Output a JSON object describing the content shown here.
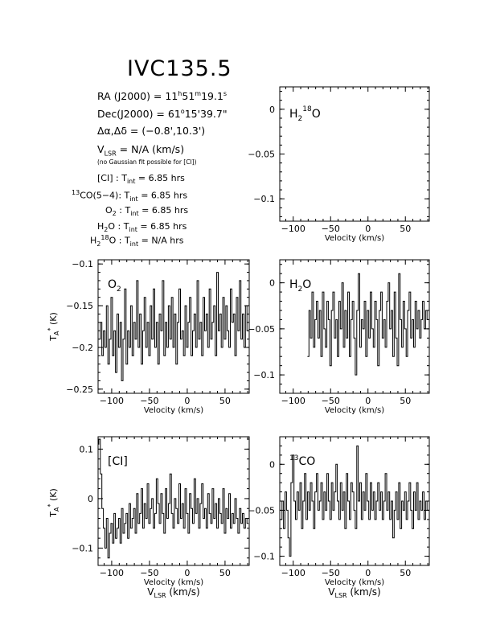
{
  "title": "IVC135.5",
  "info": {
    "ra_label": "RA (J2000) =",
    "ra_h": "11",
    "ra_h_unit": "h",
    "ra_m": "51",
    "ra_m_unit": "m",
    "ra_s": "19.1",
    "ra_s_unit": "s",
    "dec_label": "Dec(J2000) =",
    "dec_deg": "61",
    "dec_deg_unit": "o",
    "dec_rest": "15'39.7\"",
    "offset": "Δα,Δδ = (−0.8',10.3')",
    "vlsr_pre": "V",
    "vlsr_sub": "LSR",
    "vlsr_post": "= N/A  (km/s)",
    "note": "(no Gaussian fit possible for [CI])",
    "tint_rows": [
      {
        "species_pre": "",
        "species_sup": "",
        "species": "[CI] :",
        "species_sub": "",
        "species_post": "",
        "value": "6.85 hrs"
      },
      {
        "species_pre": "",
        "species_sup": "13",
        "species": "CO(5−4):",
        "species_sub": "",
        "species_post": "",
        "value": "6.85 hrs"
      },
      {
        "species_pre": "",
        "species_sup": "",
        "species": "O",
        "species_sub": "2",
        "species_post": " :",
        "value": "6.85 hrs"
      },
      {
        "species_pre": "",
        "species_sup": "",
        "species": "H",
        "species_sub": "2",
        "species_post": "O :",
        "value": "6.85 hrs"
      },
      {
        "species_pre": "H",
        "species_sup": "",
        "species": "",
        "species_sub": "2",
        "species_post": "O :",
        "value": "N/A hrs",
        "iso": "18"
      }
    ],
    "tint_label": "T",
    "tint_sub": "int",
    "tint_eq": "="
  },
  "chart_data": [
    {
      "type": "line",
      "id": "h2_18o",
      "label_main": "H",
      "label_sub": "2",
      "label_sup": "18",
      "label_post": "O",
      "xlabel": "Velocity (km/s)",
      "ylabel": "",
      "xlim": [
        -118,
        82
      ],
      "ylim": [
        -0.125,
        0.025
      ],
      "xticks": [
        -100,
        -50,
        0,
        50
      ],
      "yticks": [
        0,
        -0.05,
        -0.1
      ],
      "x": [],
      "y": []
    },
    {
      "type": "line",
      "id": "o2",
      "label_main": "O",
      "label_sub": "2",
      "xlabel": "Velocity (km/s)",
      "ylabel": "T_A* (K)",
      "xlim": [
        -118,
        82
      ],
      "ylim": [
        -0.255,
        -0.095
      ],
      "xticks": [
        -100,
        -50,
        0,
        50
      ],
      "yticks": [
        -0.1,
        -0.15,
        -0.2,
        -0.25
      ],
      "x": [
        -116,
        -114,
        -112,
        -110,
        -108,
        -106,
        -104,
        -102,
        -100,
        -98,
        -96,
        -94,
        -92,
        -90,
        -88,
        -86,
        -84,
        -82,
        -80,
        -78,
        -76,
        -74,
        -72,
        -70,
        -68,
        -66,
        -64,
        -62,
        -60,
        -58,
        -56,
        -54,
        -52,
        -50,
        -48,
        -46,
        -44,
        -42,
        -40,
        -38,
        -36,
        -34,
        -32,
        -30,
        -28,
        -26,
        -24,
        -22,
        -20,
        -18,
        -16,
        -14,
        -12,
        -10,
        -8,
        -6,
        -4,
        -2,
        0,
        2,
        4,
        6,
        8,
        10,
        12,
        14,
        16,
        18,
        20,
        22,
        24,
        26,
        28,
        30,
        32,
        34,
        36,
        38,
        40,
        42,
        44,
        46,
        48,
        50,
        52,
        54,
        56,
        58,
        60,
        62,
        64,
        66,
        68,
        70,
        72,
        74,
        76,
        78,
        80
      ],
      "y": [
        -0.19,
        -0.17,
        -0.21,
        -0.18,
        -0.2,
        -0.15,
        -0.22,
        -0.19,
        -0.14,
        -0.21,
        -0.18,
        -0.23,
        -0.16,
        -0.2,
        -0.17,
        -0.24,
        -0.19,
        -0.13,
        -0.22,
        -0.18,
        -0.2,
        -0.15,
        -0.21,
        -0.17,
        -0.19,
        -0.12,
        -0.2,
        -0.16,
        -0.22,
        -0.18,
        -0.14,
        -0.2,
        -0.17,
        -0.21,
        -0.15,
        -0.19,
        -0.13,
        -0.2,
        -0.17,
        -0.22,
        -0.16,
        -0.18,
        -0.12,
        -0.21,
        -0.17,
        -0.2,
        -0.15,
        -0.19,
        -0.14,
        -0.2,
        -0.16,
        -0.22,
        -0.17,
        -0.13,
        -0.19,
        -0.18,
        -0.21,
        -0.15,
        -0.2,
        -0.17,
        -0.14,
        -0.21,
        -0.18,
        -0.16,
        -0.2,
        -0.12,
        -0.19,
        -0.17,
        -0.21,
        -0.14,
        -0.18,
        -0.16,
        -0.2,
        -0.13,
        -0.19,
        -0.17,
        -0.15,
        -0.21,
        -0.11,
        -0.18,
        -0.16,
        -0.2,
        -0.14,
        -0.19,
        -0.15,
        -0.18,
        -0.2,
        -0.13,
        -0.17,
        -0.16,
        -0.21,
        -0.14,
        -0.18,
        -0.12,
        -0.19,
        -0.16,
        -0.2,
        -0.15,
        -0.18
      ]
    },
    {
      "type": "line",
      "id": "h2o",
      "label_main": "H",
      "label_sub": "2",
      "label_post": "O",
      "xlabel": "Velocity (km/s)",
      "ylabel": "",
      "xlim": [
        -118,
        82
      ],
      "ylim": [
        -0.12,
        0.025
      ],
      "xticks": [
        -100,
        -50,
        0,
        50
      ],
      "yticks": [
        0,
        -0.05,
        -0.1
      ],
      "x": [
        -80,
        -78,
        -76,
        -74,
        -72,
        -70,
        -68,
        -66,
        -64,
        -62,
        -60,
        -58,
        -56,
        -54,
        -52,
        -50,
        -48,
        -46,
        -44,
        -42,
        -40,
        -38,
        -36,
        -34,
        -32,
        -30,
        -28,
        -26,
        -24,
        -22,
        -20,
        -18,
        -16,
        -14,
        -12,
        -10,
        -8,
        -6,
        -4,
        -2,
        0,
        2,
        4,
        6,
        8,
        10,
        12,
        14,
        16,
        18,
        20,
        22,
        24,
        26,
        28,
        30,
        32,
        34,
        36,
        38,
        40,
        42,
        44,
        46,
        48,
        50,
        52,
        54,
        56,
        58,
        60,
        62,
        64,
        66,
        68,
        70,
        72,
        74,
        76,
        78,
        80
      ],
      "y": [
        -0.08,
        -0.03,
        -0.06,
        -0.01,
        -0.07,
        -0.04,
        -0.02,
        -0.06,
        -0.03,
        -0.08,
        -0.01,
        -0.05,
        -0.07,
        -0.02,
        -0.04,
        -0.09,
        -0.03,
        -0.01,
        -0.06,
        -0.04,
        -0.08,
        -0.02,
        -0.05,
        0.0,
        -0.07,
        -0.03,
        -0.06,
        -0.01,
        -0.08,
        -0.04,
        -0.02,
        -0.06,
        -0.1,
        -0.03,
        0.01,
        -0.07,
        -0.04,
        -0.05,
        -0.02,
        -0.08,
        -0.03,
        -0.06,
        -0.01,
        -0.05,
        -0.07,
        -0.02,
        -0.04,
        -0.09,
        -0.03,
        -0.01,
        -0.06,
        -0.04,
        -0.07,
        -0.02,
        0.0,
        -0.05,
        -0.03,
        -0.08,
        -0.01,
        -0.06,
        -0.09,
        0.01,
        -0.04,
        -0.07,
        -0.02,
        -0.05,
        -0.08,
        -0.03,
        -0.01,
        -0.06,
        -0.04,
        -0.07,
        -0.02,
        -0.05,
        -0.03,
        -0.06,
        -0.04,
        -0.02,
        -0.05,
        -0.03,
        -0.04
      ]
    },
    {
      "type": "line",
      "id": "ci",
      "label_main": "[CI]",
      "xlabel": "Velocity (km/s)",
      "xlabel2_pre": "V",
      "xlabel2_sub": "LSR",
      "xlabel2_post": " (km/s)",
      "ylabel": "T_A* (K)",
      "xlim": [
        -118,
        82
      ],
      "ylim": [
        -0.135,
        0.125
      ],
      "xticks": [
        -100,
        -50,
        0,
        50
      ],
      "yticks": [
        0.1,
        0,
        -0.1
      ],
      "x": [
        -118,
        -116,
        -114,
        -112,
        -110,
        -108,
        -106,
        -104,
        -102,
        -100,
        -98,
        -96,
        -94,
        -92,
        -90,
        -88,
        -86,
        -84,
        -82,
        -80,
        -78,
        -76,
        -74,
        -72,
        -70,
        -68,
        -66,
        -64,
        -62,
        -60,
        -58,
        -56,
        -54,
        -52,
        -50,
        -48,
        -46,
        -44,
        -42,
        -40,
        -38,
        -36,
        -34,
        -32,
        -30,
        -28,
        -26,
        -24,
        -22,
        -20,
        -18,
        -16,
        -14,
        -12,
        -10,
        -8,
        -6,
        -4,
        -2,
        0,
        2,
        4,
        6,
        8,
        10,
        12,
        14,
        16,
        18,
        20,
        22,
        24,
        26,
        28,
        30,
        32,
        34,
        36,
        38,
        40,
        42,
        44,
        46,
        48,
        50,
        52,
        54,
        56,
        58,
        60,
        62,
        64,
        66,
        68,
        70,
        72,
        74,
        76,
        78,
        80
      ],
      "y": [
        0.11,
        0.12,
        0.05,
        -0.02,
        -0.06,
        -0.1,
        -0.04,
        -0.12,
        -0.07,
        -0.05,
        -0.09,
        -0.03,
        -0.08,
        -0.06,
        -0.04,
        -0.09,
        -0.02,
        -0.07,
        -0.05,
        -0.03,
        -0.08,
        -0.01,
        -0.06,
        -0.04,
        -0.02,
        -0.07,
        0.01,
        -0.05,
        -0.03,
        0.02,
        -0.06,
        -0.01,
        -0.04,
        0.03,
        -0.05,
        -0.02,
        0.0,
        -0.06,
        -0.03,
        0.04,
        -0.01,
        -0.05,
        0.01,
        -0.03,
        -0.07,
        0.02,
        -0.04,
        -0.01,
        0.05,
        -0.03,
        -0.06,
        0.0,
        -0.02,
        -0.05,
        0.03,
        -0.04,
        -0.01,
        -0.06,
        0.02,
        -0.03,
        -0.07,
        0.01,
        -0.02,
        -0.05,
        0.04,
        -0.03,
        0.0,
        -0.06,
        -0.01,
        0.03,
        -0.04,
        -0.02,
        -0.06,
        0.01,
        -0.03,
        -0.05,
        0.02,
        -0.04,
        -0.01,
        -0.06,
        0.0,
        -0.03,
        -0.05,
        0.02,
        -0.07,
        -0.02,
        -0.04,
        0.01,
        -0.06,
        -0.03,
        -0.05,
        0.0,
        -0.04,
        -0.07,
        -0.02,
        -0.05,
        -0.03,
        -0.06,
        -0.04,
        -0.05
      ]
    },
    {
      "type": "line",
      "id": "co13",
      "label_main": "CO",
      "label_sup": "13",
      "xlabel": "Velocity (km/s)",
      "xlabel2_pre": "V",
      "xlabel2_sub": "LSR",
      "xlabel2_post": " (km/s)",
      "ylabel": "",
      "xlim": [
        -118,
        82
      ],
      "ylim": [
        -0.11,
        0.03
      ],
      "xticks": [
        -100,
        -50,
        0,
        50
      ],
      "yticks": [
        0,
        -0.05,
        -0.1
      ],
      "x": [
        -116,
        -114,
        -112,
        -110,
        -108,
        -106,
        -104,
        -102,
        -100,
        -98,
        -96,
        -94,
        -92,
        -90,
        -88,
        -86,
        -84,
        -82,
        -80,
        -78,
        -76,
        -74,
        -72,
        -70,
        -68,
        -66,
        -64,
        -62,
        -60,
        -58,
        -56,
        -54,
        -52,
        -50,
        -48,
        -46,
        -44,
        -42,
        -40,
        -38,
        -36,
        -34,
        -32,
        -30,
        -28,
        -26,
        -24,
        -22,
        -20,
        -18,
        -16,
        -14,
        -12,
        -10,
        -8,
        -6,
        -4,
        -2,
        0,
        2,
        4,
        6,
        8,
        10,
        12,
        14,
        16,
        18,
        20,
        22,
        24,
        26,
        28,
        30,
        32,
        34,
        36,
        38,
        40,
        42,
        44,
        46,
        48,
        50,
        52,
        54,
        56,
        58,
        60,
        62,
        64,
        66,
        68,
        70,
        72,
        74,
        76,
        78,
        80
      ],
      "y": [
        -0.06,
        -0.04,
        -0.07,
        -0.03,
        -0.05,
        -0.08,
        -0.1,
        -0.02,
        0.01,
        -0.04,
        -0.06,
        -0.03,
        -0.05,
        -0.02,
        -0.07,
        -0.04,
        -0.01,
        -0.06,
        -0.03,
        -0.05,
        -0.02,
        -0.04,
        -0.07,
        -0.03,
        -0.01,
        -0.05,
        -0.04,
        -0.02,
        -0.06,
        -0.03,
        -0.05,
        -0.01,
        -0.04,
        -0.06,
        -0.02,
        -0.05,
        -0.03,
        0.0,
        -0.04,
        -0.06,
        -0.02,
        -0.05,
        -0.03,
        -0.07,
        -0.01,
        -0.04,
        -0.06,
        -0.02,
        -0.03,
        -0.05,
        -0.07,
        0.02,
        -0.04,
        -0.02,
        -0.06,
        -0.03,
        -0.05,
        -0.01,
        -0.04,
        -0.06,
        -0.02,
        -0.05,
        -0.03,
        -0.06,
        -0.04,
        -0.02,
        -0.05,
        -0.03,
        -0.06,
        -0.04,
        -0.01,
        -0.05,
        -0.03,
        -0.06,
        -0.04,
        -0.08,
        -0.05,
        -0.03,
        -0.06,
        -0.02,
        -0.07,
        -0.04,
        -0.05,
        -0.03,
        -0.06,
        -0.04,
        -0.02,
        -0.05,
        -0.07,
        -0.03,
        -0.05,
        -0.02,
        -0.06,
        -0.04,
        -0.05,
        -0.03,
        -0.06,
        -0.04,
        -0.05
      ]
    }
  ]
}
